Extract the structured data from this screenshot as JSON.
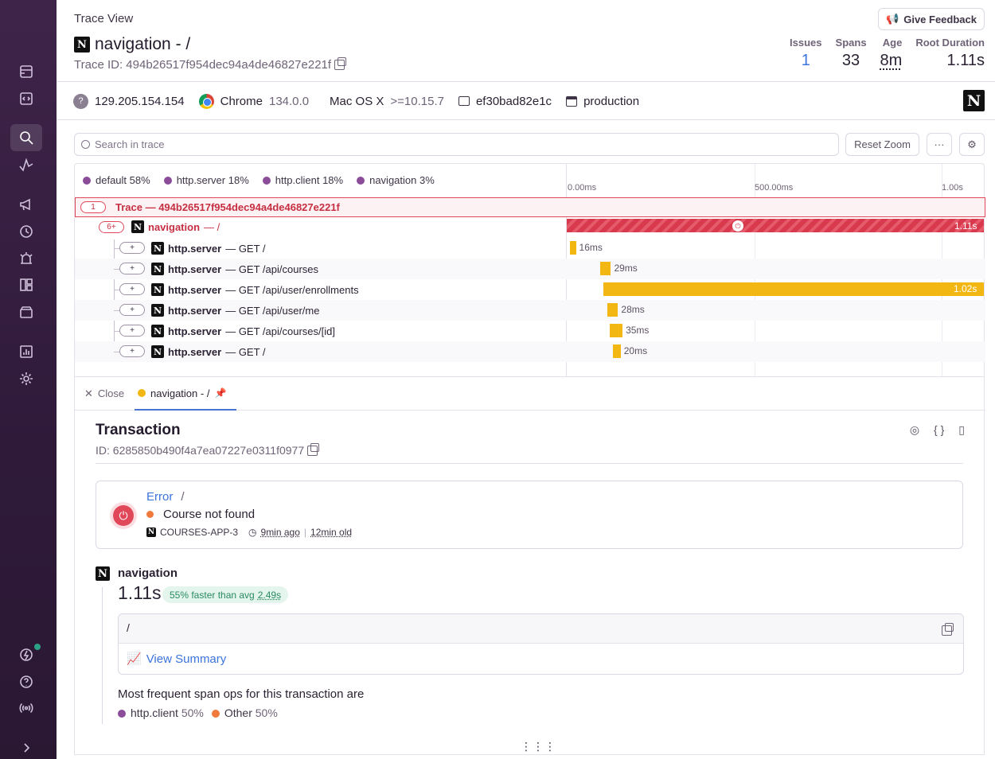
{
  "header": {
    "breadcrumb": "Trace View",
    "title": "navigation - /",
    "trace_id": "Trace ID: 494b26517f954dec94a4de46827e221f",
    "feedback_label": "Give Feedback",
    "stats": [
      {
        "label": "Issues",
        "value": "1"
      },
      {
        "label": "Spans",
        "value": "33"
      },
      {
        "label": "Age",
        "value": "8m"
      },
      {
        "label": "Root Duration",
        "value": "1.11s"
      }
    ]
  },
  "tags": {
    "ip": "129.205.154.154",
    "browser": "Chrome",
    "browser_version": "134.0.0",
    "os": "Mac OS X",
    "os_version": ">=10.15.7",
    "release": "ef30bad82e1c",
    "environment": "production"
  },
  "toolbar": {
    "search_placeholder": "Search in trace",
    "reset_zoom": "Reset Zoom",
    "more": "···"
  },
  "legend": [
    {
      "name": "default",
      "pct": "58%"
    },
    {
      "name": "http.server",
      "pct": "18%"
    },
    {
      "name": "http.client",
      "pct": "18%"
    },
    {
      "name": "navigation",
      "pct": "3%"
    }
  ],
  "timeline": {
    "ticks": [
      "0.00ms",
      "500.00ms",
      "1.00s"
    ]
  },
  "trace_row": {
    "count": "1",
    "label": "Trace — 494b26517f954dec94a4de46827e221f"
  },
  "root_span": {
    "count": "6+",
    "op": "navigation",
    "desc": "— /",
    "duration": "1.11s"
  },
  "spans": [
    {
      "op": "http.server",
      "desc": "— GET /",
      "duration": "16ms",
      "start_s": 0.0,
      "dur_s": 0.016
    },
    {
      "op": "http.server",
      "desc": "— GET /api/courses",
      "duration": "29ms",
      "start_s": 0.08,
      "dur_s": 0.029
    },
    {
      "op": "http.server",
      "desc": "— GET /api/user/enrollments",
      "duration": "1.02s",
      "start_s": 0.09,
      "dur_s": 1.02
    },
    {
      "op": "http.server",
      "desc": "— GET /api/user/me",
      "duration": "28ms",
      "start_s": 0.1,
      "dur_s": 0.028
    },
    {
      "op": "http.server",
      "desc": "— GET /api/courses/[id]",
      "duration": "35ms",
      "start_s": 0.105,
      "dur_s": 0.035
    },
    {
      "op": "http.server",
      "desc": "— GET /",
      "duration": "20ms",
      "start_s": 0.115,
      "dur_s": 0.02
    }
  ],
  "details": {
    "close_label": "Close",
    "tab_label": "navigation - /",
    "heading": "Transaction",
    "id": "ID: 6285850b490f4a7ea07227e0311f0977",
    "error": {
      "type": "Error",
      "path": "/",
      "message": "Course not found",
      "project": "COURSES-APP-3",
      "last_seen": "9min ago",
      "age": "12min old"
    },
    "nav_name": "navigation",
    "nav_duration": "1.11s",
    "faster_text": "55% faster than avg",
    "faster_avg": "2.49s",
    "summary_path": "/",
    "view_summary": "View Summary",
    "ops_text": "Most frequent span ops for this transaction are",
    "ops": [
      {
        "name": "http.client",
        "pct": "50%",
        "color": "#8b4c99"
      },
      {
        "name": "Other",
        "pct": "50%",
        "color": "#f07a3b"
      }
    ]
  },
  "colors": {
    "sidebar": "#2f1a3a",
    "accent_blue": "#3c74dd",
    "error_red": "#e0485a",
    "span_yellow": "#f2b712"
  }
}
